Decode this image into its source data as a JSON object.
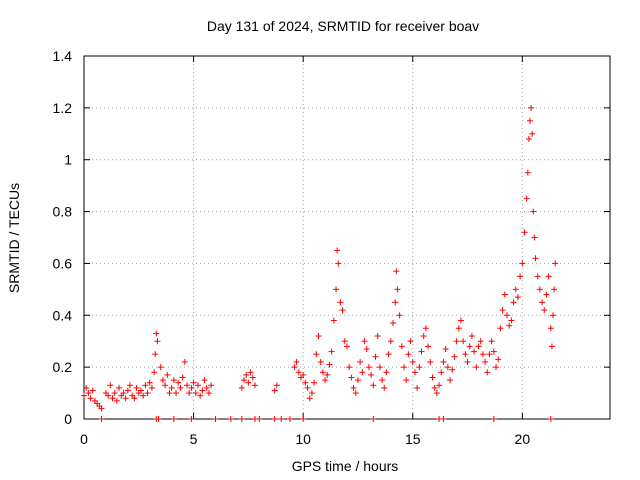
{
  "chart_data": {
    "type": "scatter",
    "title": "Day 131 of 2024, SRMTID for receiver boav",
    "xlabel": "GPS time / hours",
    "ylabel": "SRMTID / TECUs",
    "xlim": [
      0,
      24
    ],
    "ylim": [
      0,
      1.4
    ],
    "grid": true,
    "x_ticks": [
      0,
      5,
      10,
      15,
      20
    ],
    "x_tick_labels": [
      "0",
      "5",
      "10",
      "15",
      "20"
    ],
    "y_ticks": [
      0,
      0.2,
      0.4,
      0.6,
      0.8,
      1.0,
      1.2,
      1.4
    ],
    "y_tick_labels": [
      "0",
      "0.2",
      "0.4",
      "0.6",
      "0.8",
      "1",
      "1.2",
      "1.4"
    ],
    "marker": "+",
    "series": [
      {
        "name": "SRMTID",
        "color": "#ff0000",
        "x": [
          0.0,
          0.1,
          0.2,
          0.3,
          0.4,
          0.5,
          0.6,
          0.7,
          0.8,
          1.0,
          1.1,
          1.2,
          1.3,
          1.4,
          1.5,
          1.6,
          1.7,
          1.8,
          1.9,
          2.0,
          2.1,
          2.2,
          2.3,
          2.4,
          2.5,
          2.6,
          2.7,
          2.8,
          2.9,
          3.0,
          3.1,
          3.2,
          3.25,
          3.3,
          3.35,
          3.5,
          3.6,
          3.7,
          3.8,
          3.9,
          4.0,
          4.1,
          4.2,
          4.3,
          4.4,
          4.5,
          4.6,
          4.7,
          4.8,
          4.9,
          5.0,
          5.1,
          5.2,
          5.3,
          5.4,
          5.5,
          5.6,
          5.7,
          5.8,
          7.2,
          7.3,
          7.4,
          7.5,
          7.6,
          7.7,
          7.8,
          8.7,
          8.8,
          9.6,
          9.7,
          9.8,
          9.9,
          10.0,
          10.1,
          10.2,
          10.3,
          10.4,
          10.5,
          10.6,
          10.7,
          10.8,
          10.9,
          11.0,
          11.1,
          11.2,
          11.3,
          11.4,
          11.5,
          11.55,
          11.6,
          11.7,
          11.8,
          11.9,
          12.0,
          12.1,
          12.2,
          12.3,
          12.4,
          12.5,
          12.6,
          12.7,
          12.8,
          12.9,
          13.0,
          13.1,
          13.2,
          13.3,
          13.4,
          13.5,
          13.6,
          13.7,
          13.8,
          13.9,
          14.0,
          14.1,
          14.2,
          14.25,
          14.3,
          14.4,
          14.5,
          14.6,
          14.7,
          14.8,
          14.9,
          15.0,
          15.1,
          15.2,
          15.3,
          15.4,
          15.5,
          15.6,
          15.7,
          15.8,
          15.9,
          16.0,
          16.1,
          16.2,
          16.3,
          16.4,
          16.5,
          16.6,
          16.7,
          16.8,
          16.9,
          17.0,
          17.1,
          17.2,
          17.3,
          17.4,
          17.5,
          17.6,
          17.7,
          17.8,
          17.9,
          18.0,
          18.1,
          18.2,
          18.3,
          18.4,
          18.5,
          18.6,
          18.7,
          18.8,
          18.9,
          19.0,
          19.1,
          19.2,
          19.3,
          19.4,
          19.5,
          19.6,
          19.7,
          19.8,
          19.9,
          20.0,
          20.1,
          20.2,
          20.25,
          20.3,
          20.35,
          20.4,
          20.45,
          20.5,
          20.55,
          20.6,
          20.7,
          20.8,
          20.9,
          21.0,
          21.1,
          21.2,
          21.3,
          21.35,
          21.4,
          21.45,
          21.5,
          0.8,
          3.3,
          3.4,
          4.1,
          4.9,
          6.0,
          6.7,
          7.2,
          7.8,
          8.0,
          8.7,
          9.0,
          9.4,
          10.0,
          13.2,
          16.2,
          16.4,
          18.7,
          21.3
        ],
        "y": [
          0.09,
          0.12,
          0.1,
          0.08,
          0.11,
          0.07,
          0.06,
          0.05,
          0.04,
          0.1,
          0.09,
          0.13,
          0.08,
          0.1,
          0.07,
          0.12,
          0.09,
          0.1,
          0.08,
          0.11,
          0.13,
          0.09,
          0.08,
          0.12,
          0.1,
          0.11,
          0.09,
          0.13,
          0.1,
          0.14,
          0.12,
          0.18,
          0.25,
          0.33,
          0.3,
          0.2,
          0.15,
          0.13,
          0.17,
          0.1,
          0.12,
          0.15,
          0.1,
          0.14,
          0.12,
          0.16,
          0.22,
          0.13,
          0.1,
          0.12,
          0.14,
          0.1,
          0.13,
          0.09,
          0.11,
          0.15,
          0.12,
          0.1,
          0.13,
          0.12,
          0.15,
          0.17,
          0.14,
          0.18,
          0.16,
          0.13,
          0.11,
          0.13,
          0.2,
          0.22,
          0.18,
          0.16,
          0.17,
          0.14,
          0.12,
          0.08,
          0.1,
          0.14,
          0.25,
          0.32,
          0.22,
          0.18,
          0.15,
          0.17,
          0.21,
          0.26,
          0.38,
          0.5,
          0.65,
          0.6,
          0.45,
          0.42,
          0.3,
          0.28,
          0.2,
          0.16,
          0.12,
          0.1,
          0.15,
          0.22,
          0.18,
          0.3,
          0.27,
          0.2,
          0.17,
          0.13,
          0.24,
          0.32,
          0.2,
          0.15,
          0.12,
          0.18,
          0.25,
          0.3,
          0.37,
          0.45,
          0.57,
          0.5,
          0.4,
          0.28,
          0.2,
          0.15,
          0.25,
          0.3,
          0.22,
          0.18,
          0.12,
          0.2,
          0.26,
          0.32,
          0.35,
          0.28,
          0.22,
          0.16,
          0.12,
          0.1,
          0.13,
          0.18,
          0.22,
          0.27,
          0.2,
          0.15,
          0.19,
          0.24,
          0.3,
          0.35,
          0.38,
          0.3,
          0.25,
          0.22,
          0.28,
          0.32,
          0.26,
          0.2,
          0.28,
          0.3,
          0.25,
          0.22,
          0.18,
          0.25,
          0.3,
          0.26,
          0.2,
          0.23,
          0.35,
          0.42,
          0.48,
          0.4,
          0.36,
          0.38,
          0.45,
          0.5,
          0.47,
          0.55,
          0.6,
          0.72,
          0.85,
          0.95,
          1.08,
          1.15,
          1.2,
          1.1,
          0.8,
          0.7,
          0.62,
          0.55,
          0.5,
          0.45,
          0.42,
          0.48,
          0.55,
          0.35,
          0.28,
          0.4,
          0.5,
          0.6,
          0.0,
          0.0,
          0.0,
          0.0,
          0.0,
          0.0,
          0.0,
          0.0,
          0.0,
          0.0,
          0.0,
          0.0,
          0.0,
          0.0,
          0.0,
          0.0,
          0.0,
          0.0,
          0.0
        ]
      }
    ]
  }
}
